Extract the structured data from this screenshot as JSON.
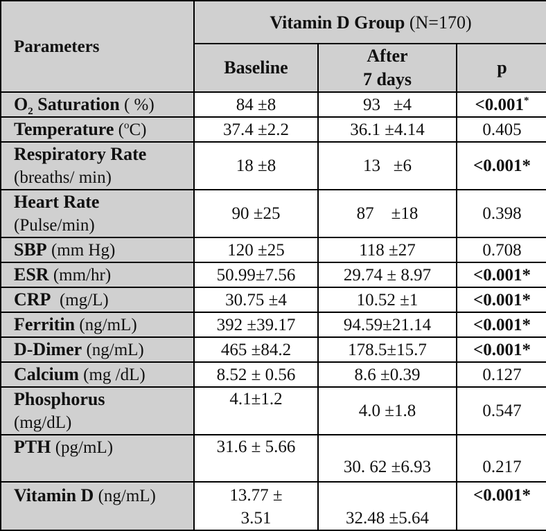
{
  "header": {
    "parameters_label": "Parameters",
    "group_name": "Vitamin D Group",
    "group_n": "(N=170)",
    "col_baseline": "Baseline",
    "col_after_line1": "After",
    "col_after_line2": "7 days",
    "col_p": "p"
  },
  "rows": [
    {
      "name": "O",
      "name_sub": "2",
      "name_rest": " Saturation",
      "unit": " ( %)",
      "baseline": "84 ±8",
      "after": "93   ±4",
      "p": "<0.001",
      "p_sup": "*",
      "sig": true
    },
    {
      "name": "Temperature",
      "unit_pre": " (",
      "unit_sup": "o",
      "unit_post": "C)",
      "baseline": "37.4 ±2.2",
      "after": "36.1 ±4.14",
      "p": "0.405",
      "sig": false
    },
    {
      "name": "Respiratory Rate",
      "unit": "(breaths/ min)",
      "baseline": "18 ±8",
      "after": "13   ±6",
      "p": "<0.001*",
      "sig": true
    },
    {
      "name": "Heart Rate",
      "unit": "(Pulse/min)",
      "baseline": "90 ±25",
      "after": "87    ±18",
      "p": "0.398",
      "sig": false
    },
    {
      "name": "SBP",
      "unit": " (mm Hg)",
      "baseline": "120 ±25",
      "after": "118 ±27",
      "p": "0.708",
      "sig": false
    },
    {
      "name": "ESR",
      "unit": " (mm/hr)",
      "baseline": "50.99±7.56",
      "after": "29.74 ± 8.97",
      "p": "<0.001*",
      "sig": true
    },
    {
      "name": "CRP",
      "unit": "  (mg/L)",
      "baseline": "30.75 ±4",
      "after": "10.52 ±1",
      "p": "<0.001*",
      "sig": true
    },
    {
      "name": "Ferritin",
      "unit": " (ng/mL)",
      "baseline": "392 ±39.17",
      "after": "94.59±21.14",
      "p": "<0.001*",
      "sig": true
    },
    {
      "name": "D-Dimer",
      "unit": " (ng/mL)",
      "baseline": "465 ±84.2",
      "after": "178.5±15.7",
      "p": "<0.001*",
      "sig": true
    },
    {
      "name": "Calcium",
      "unit": " (mg /dL)",
      "baseline": "8.52 ± 0.56",
      "after": "8.6 ±0.39",
      "p": "0.127",
      "sig": false
    },
    {
      "name": "Phosphorus",
      "unit": "(mg/dL)",
      "baseline": "4.1±1.2",
      "after": "4.0 ±1.8",
      "p": "0.547",
      "sig": false
    },
    {
      "name": "PTH",
      "unit": " (pg/mL)",
      "baseline": "31.6 ± 5.66",
      "after": "30. 62 ±6.93",
      "p": "0.217",
      "sig": false
    },
    {
      "name": "Vitamin D",
      "unit": " (ng/mL)",
      "baseline_line1": "13.77 ±",
      "baseline_line2": "3.51",
      "after": "32.48 ±5.64",
      "p": "<0.001*",
      "sig": true
    }
  ]
}
